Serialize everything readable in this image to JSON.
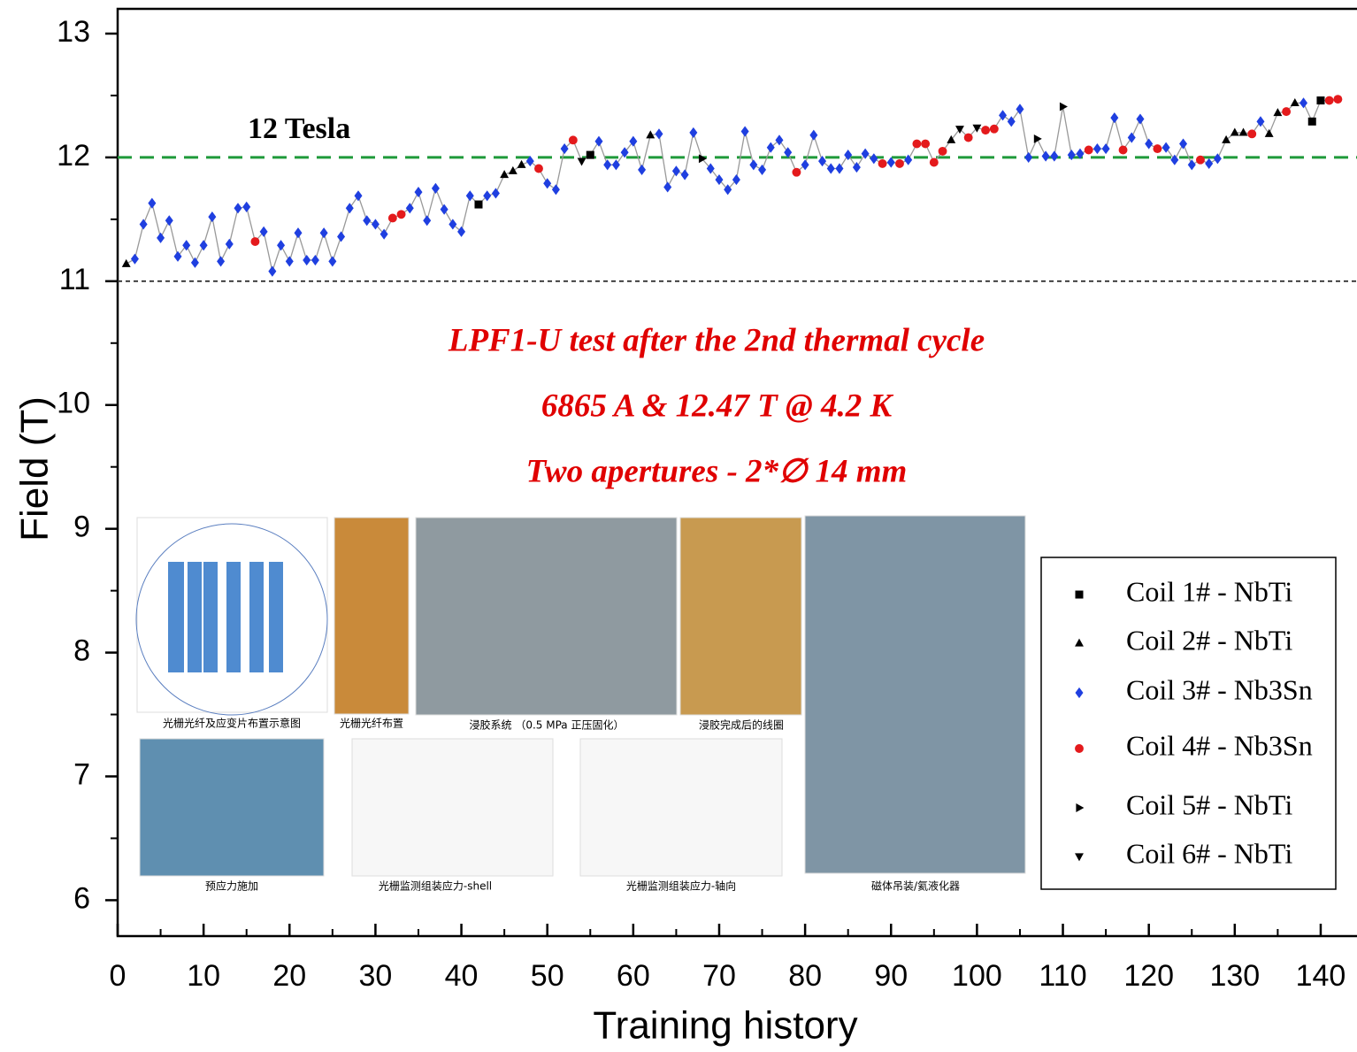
{
  "chart_data": {
    "type": "scatter",
    "y_label": "Field (T)",
    "x_label": "Training history",
    "xlim": [
      0,
      144.2
    ],
    "ylim": [
      5.71,
      13.2
    ],
    "xticks": [
      0,
      10,
      20,
      30,
      40,
      50,
      60,
      70,
      80,
      90,
      100,
      110,
      120,
      130,
      140
    ],
    "xminorticks": [
      5,
      15,
      25,
      35,
      45,
      55,
      65,
      75,
      85,
      95,
      105,
      115,
      125,
      135
    ],
    "yticks": [
      6,
      7,
      8,
      9,
      10,
      11,
      12,
      13
    ],
    "yminorticks": [
      6.5,
      7.5,
      8.5,
      9.5,
      10.5,
      11.5,
      12.5
    ],
    "line_color": "#999999",
    "reference_lines": [
      {
        "value": 12,
        "color": "#1f9a3a",
        "dash": "16 9"
      },
      {
        "value": 11,
        "color": "#333333",
        "dash": "5 4"
      }
    ],
    "annotations": {
      "reference_label": "12 Tesla",
      "test": "LPF1-U test after the 2nd thermal cycle",
      "current": "6865 A & 12.47 T @ 4.2 K",
      "apertures": "Two apertures - 2*∅ 14 mm"
    },
    "series": [
      {
        "name": "Coil 1# - NbTi",
        "marker": "square",
        "color": "#000000"
      },
      {
        "name": "Coil 2# - NbTi",
        "marker": "triangle-up",
        "color": "#000000"
      },
      {
        "name": "Coil 3# - Nb3Sn",
        "marker": "diamond",
        "color": "#1f3fe0"
      },
      {
        "name": "Coil 4# - Nb3Sn",
        "marker": "circle",
        "color": "#e41a1c"
      },
      {
        "name": "Coil 5# - NbTi",
        "marker": "triangle-right",
        "color": "#000000"
      },
      {
        "name": "Coil 6# - NbTi",
        "marker": "triangle-down",
        "color": "#000000"
      }
    ],
    "points": {
      "x": [
        1,
        2,
        3,
        4,
        5,
        6,
        7,
        8,
        9,
        10,
        11,
        12,
        13,
        14,
        15,
        16,
        17,
        18,
        19,
        20,
        21,
        22,
        23,
        24,
        25,
        26,
        27,
        28,
        29,
        30,
        31,
        32,
        33,
        34,
        35,
        36,
        37,
        38,
        39,
        40,
        41,
        42,
        43,
        44,
        45,
        46,
        47,
        48,
        49,
        50,
        51,
        52,
        53,
        54,
        55,
        56,
        57,
        58,
        59,
        60,
        61,
        62,
        63,
        64,
        65,
        66,
        67,
        68,
        69,
        70,
        71,
        72,
        73,
        74,
        75,
        76,
        77,
        78,
        79,
        80,
        81,
        82,
        83,
        84,
        85,
        86,
        87,
        88,
        89,
        90,
        91,
        92,
        93,
        94,
        95,
        96,
        97,
        98,
        99,
        100,
        101,
        102,
        103,
        104,
        105,
        106,
        107,
        108,
        109,
        110,
        111,
        112,
        113,
        114,
        115,
        116,
        117,
        118,
        119,
        120,
        121,
        122,
        123,
        124,
        125,
        126,
        127,
        128,
        129,
        130,
        131,
        132,
        133,
        134,
        135,
        136,
        137,
        138,
        139,
        140,
        141,
        142
      ],
      "values": [
        11.14,
        11.18,
        11.46,
        11.63,
        11.35,
        11.49,
        11.2,
        11.29,
        11.15,
        11.29,
        11.52,
        11.16,
        11.3,
        11.59,
        11.6,
        11.32,
        11.4,
        11.08,
        11.29,
        11.16,
        11.39,
        11.17,
        11.17,
        11.39,
        11.16,
        11.36,
        11.59,
        11.69,
        11.49,
        11.46,
        11.38,
        11.51,
        11.54,
        11.59,
        11.72,
        11.49,
        11.75,
        11.58,
        11.46,
        11.4,
        11.69,
        11.62,
        11.69,
        11.71,
        11.86,
        11.89,
        11.94,
        11.97,
        11.91,
        11.79,
        11.74,
        12.07,
        12.14,
        11.97,
        12.02,
        12.13,
        11.94,
        11.94,
        12.04,
        12.13,
        11.9,
        12.18,
        12.19,
        11.76,
        11.89,
        11.86,
        12.2,
        11.99,
        11.91,
        11.82,
        11.74,
        11.82,
        12.21,
        11.94,
        11.9,
        12.08,
        12.14,
        12.04,
        11.88,
        11.94,
        12.18,
        11.97,
        11.91,
        11.91,
        12.02,
        11.92,
        12.03,
        11.99,
        11.95,
        11.96,
        11.95,
        11.98,
        12.11,
        12.11,
        11.96,
        12.05,
        12.14,
        12.23,
        12.16,
        12.24,
        12.22,
        12.23,
        12.34,
        12.29,
        12.39,
        12.0,
        12.15,
        12.01,
        12.01,
        12.41,
        12.02,
        12.03,
        12.06,
        12.07,
        12.07,
        12.32,
        12.06,
        12.16,
        12.31,
        12.11,
        12.07,
        12.08,
        11.98,
        12.11,
        11.94,
        11.98,
        11.95,
        11.99,
        12.14,
        12.2,
        12.2,
        12.19,
        12.29,
        12.19,
        12.36,
        12.37,
        12.44,
        12.44,
        12.29,
        12.46,
        12.46,
        12.47
      ],
      "series": [
        1,
        2,
        2,
        2,
        2,
        2,
        2,
        2,
        2,
        2,
        2,
        2,
        2,
        2,
        2,
        3,
        2,
        2,
        2,
        2,
        2,
        2,
        2,
        2,
        2,
        2,
        2,
        2,
        2,
        2,
        2,
        3,
        3,
        2,
        2,
        2,
        2,
        2,
        2,
        2,
        2,
        0,
        2,
        2,
        1,
        1,
        1,
        2,
        3,
        2,
        2,
        2,
        3,
        5,
        0,
        2,
        2,
        2,
        2,
        2,
        2,
        1,
        2,
        2,
        2,
        2,
        2,
        4,
        2,
        2,
        2,
        2,
        2,
        2,
        2,
        2,
        2,
        2,
        3,
        2,
        2,
        2,
        2,
        2,
        2,
        2,
        2,
        2,
        3,
        2,
        3,
        2,
        3,
        3,
        3,
        3,
        1,
        5,
        3,
        5,
        3,
        3,
        2,
        2,
        2,
        2,
        4,
        2,
        2,
        4,
        2,
        2,
        3,
        2,
        2,
        2,
        3,
        2,
        2,
        2,
        3,
        2,
        2,
        2,
        2,
        3,
        2,
        2,
        1,
        1,
        1,
        3,
        2,
        1,
        1,
        3,
        1,
        2,
        0,
        0,
        3,
        3
      ]
    }
  },
  "insets": [
    {
      "caption": "光栅光纤及应变片布置示意图"
    },
    {
      "caption": "光栅光纤布置"
    },
    {
      "caption": "浸胶系统 （0.5 MPa 正压固化）"
    },
    {
      "caption": "浸胶完成后的线圈"
    },
    {
      "caption": "预应力施加"
    },
    {
      "caption": "光栅监测组装应力-shell"
    },
    {
      "caption": "光栅监测组装应力-轴向"
    },
    {
      "caption": "磁体吊装/氦液化器"
    }
  ]
}
